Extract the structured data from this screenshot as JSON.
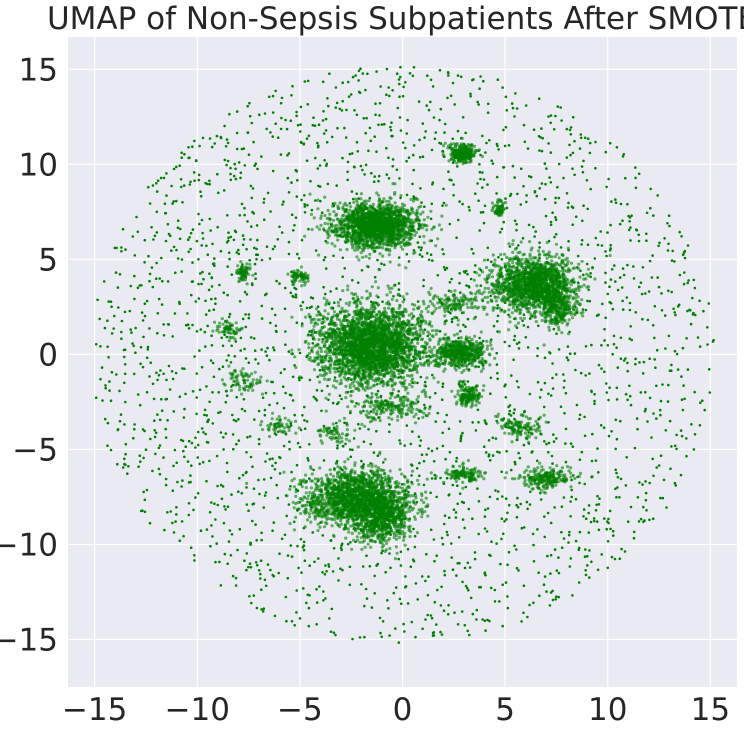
{
  "chart_data": {
    "type": "scatter",
    "title": "UMAP of Non-Sepsis Subpatients After SMOTE",
    "xlabel": "",
    "ylabel": "",
    "xlim": [
      -16.3,
      16.3
    ],
    "ylim": [
      -17.5,
      16.7
    ],
    "xticks": [
      -15,
      -10,
      -5,
      0,
      5,
      10,
      15
    ],
    "yticks": [
      -15,
      -10,
      -5,
      0,
      5,
      10,
      15
    ],
    "xtick_labels": [
      "−15",
      "−10",
      "−5",
      "0",
      "5",
      "10",
      "15"
    ],
    "ytick_labels": [
      "−15",
      "−10",
      "−5",
      "0",
      "5",
      "10",
      "15"
    ],
    "grid": true,
    "background_color": "#eaeaf2",
    "point_color": "#008000",
    "scatter_extent": {
      "center": [
        0,
        0
      ],
      "radius": 15.2
    },
    "series": [
      {
        "values": [
          {
            "x": -1.5,
            "y": 0.5,
            "sx": 2.3,
            "sy": 1.9,
            "n": 2600
          },
          {
            "x": 2.8,
            "y": 0.1,
            "sx": 1.2,
            "sy": 0.7,
            "n": 500
          },
          {
            "x": -1.3,
            "y": 6.8,
            "sx": 1.9,
            "sy": 1.1,
            "n": 1600
          },
          {
            "x": 6.3,
            "y": 3.7,
            "sx": 1.8,
            "sy": 1.3,
            "n": 1400
          },
          {
            "x": 7.5,
            "y": 2.5,
            "sx": 0.8,
            "sy": 0.9,
            "n": 300
          },
          {
            "x": -2.2,
            "y": -7.6,
            "sx": 2.3,
            "sy": 1.3,
            "n": 1700
          },
          {
            "x": -1.0,
            "y": -8.8,
            "sx": 1.2,
            "sy": 1.1,
            "n": 500
          },
          {
            "x": 2.9,
            "y": 10.6,
            "sx": 0.6,
            "sy": 0.45,
            "n": 260
          },
          {
            "x": -7.8,
            "y": 4.3,
            "sx": 0.3,
            "sy": 0.45,
            "n": 70
          },
          {
            "x": -5.0,
            "y": 4.1,
            "sx": 0.4,
            "sy": 0.35,
            "n": 70
          },
          {
            "x": 4.7,
            "y": 7.7,
            "sx": 0.3,
            "sy": 0.4,
            "n": 60
          },
          {
            "x": 3.2,
            "y": -2.2,
            "sx": 0.5,
            "sy": 0.5,
            "n": 150
          },
          {
            "x": 5.8,
            "y": -3.8,
            "sx": 0.9,
            "sy": 0.6,
            "n": 120
          },
          {
            "x": 3.0,
            "y": -6.3,
            "sx": 0.9,
            "sy": 0.35,
            "n": 120
          },
          {
            "x": 7.0,
            "y": -6.5,
            "sx": 1.3,
            "sy": 0.5,
            "n": 220
          },
          {
            "x": -8.5,
            "y": 1.3,
            "sx": 0.6,
            "sy": 0.6,
            "n": 60
          },
          {
            "x": -7.8,
            "y": -1.3,
            "sx": 0.8,
            "sy": 0.6,
            "n": 70
          },
          {
            "x": -3.2,
            "y": -4.2,
            "sx": 0.7,
            "sy": 0.5,
            "n": 60
          },
          {
            "x": -6.0,
            "y": -3.8,
            "sx": 0.7,
            "sy": 0.5,
            "n": 50
          },
          {
            "x": 2.5,
            "y": 2.7,
            "sx": 1.5,
            "sy": 0.5,
            "n": 120
          },
          {
            "x": -0.5,
            "y": -2.8,
            "sx": 1.5,
            "sy": 0.6,
            "n": 180
          }
        ]
      }
    ]
  }
}
